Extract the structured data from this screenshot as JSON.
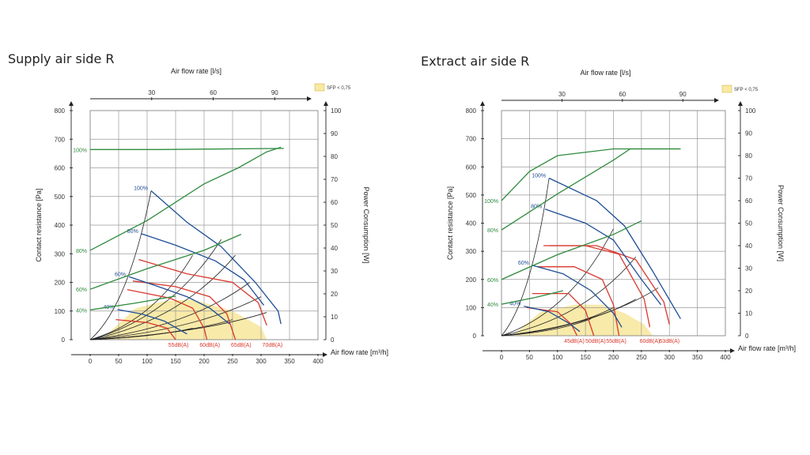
{
  "colors": {
    "green": "#2e8b3e",
    "blue": "#1f4e96",
    "red": "#d9382e",
    "black": "#222222",
    "sfp": "#f8e9a4"
  },
  "chart_data": [
    {
      "type": "line",
      "title": "Supply air side R",
      "xlabel": "Air flow rate [m³/h]",
      "x2label": "Air flow rate [l/s]",
      "ylabel": "Contact resistance [Pa]",
      "y2label": "Power Consumption [W]",
      "x_ticks": [
        "0",
        "50",
        "100",
        "150",
        "200",
        "250",
        "300",
        "350",
        "400"
      ],
      "x2_ticks": [
        "30",
        "60",
        "90"
      ],
      "y_ticks": [
        "0",
        "100",
        "200",
        "300",
        "400",
        "500",
        "600",
        "700",
        "800"
      ],
      "y2_ticks": [
        "0",
        "10",
        "20",
        "30",
        "40",
        "50",
        "60",
        "70",
        "80",
        "90",
        "100"
      ],
      "xlim": [
        0,
        400
      ],
      "ylim": [
        0,
        800
      ],
      "y2lim": [
        0,
        100
      ],
      "legend": "SFP < 0,75",
      "pressure_curves": [
        {
          "name": "100%",
          "points": [
            [
              107,
              520
            ],
            [
              170,
              410
            ],
            [
              230,
              325
            ],
            [
              290,
              200
            ],
            [
              330,
              100
            ],
            [
              335,
              55
            ]
          ]
        },
        {
          "name": "80%",
          "points": [
            [
              90,
              370
            ],
            [
              150,
              330
            ],
            [
              220,
              275
            ],
            [
              270,
              210
            ],
            [
              305,
              120
            ]
          ]
        },
        {
          "name": "60%",
          "points": [
            [
              68,
              220
            ],
            [
              120,
              185
            ],
            [
              170,
              150
            ],
            [
              210,
              110
            ],
            [
              245,
              55
            ]
          ]
        },
        {
          "name": "40%",
          "points": [
            [
              48,
              105
            ],
            [
              90,
              90
            ],
            [
              130,
              65
            ],
            [
              170,
              20
            ]
          ]
        }
      ],
      "power_curves": [
        {
          "name": "100%",
          "points": [
            [
              0,
              83
            ],
            [
              120,
              83
            ],
            [
              340,
              83.5
            ]
          ]
        },
        {
          "name": "80%",
          "points": [
            [
              0,
              39
            ],
            [
              100,
              52
            ],
            [
              200,
              68
            ],
            [
              260,
              75
            ],
            [
              310,
              82
            ],
            [
              335,
              84
            ]
          ]
        },
        {
          "name": "60%",
          "points": [
            [
              0,
              22
            ],
            [
              100,
              31
            ],
            [
              200,
              39
            ],
            [
              265,
              46
            ]
          ]
        },
        {
          "name": "40%",
          "points": [
            [
              0,
              13
            ],
            [
              80,
              16
            ],
            [
              150,
              19
            ]
          ]
        }
      ],
      "noise_curves": [
        {
          "name": "55dB(A)",
          "points": [
            [
              45,
              70
            ],
            [
              100,
              60
            ],
            [
              135,
              40
            ],
            [
              150,
              0
            ]
          ]
        },
        {
          "name": "60dB(A)",
          "points": [
            [
              65,
              175
            ],
            [
              140,
              145
            ],
            [
              180,
              110
            ],
            [
              200,
              40
            ],
            [
              205,
              0
            ]
          ]
        },
        {
          "name": "65dB(A)",
          "points": [
            [
              75,
              205
            ],
            [
              150,
              185
            ],
            [
              210,
              150
            ],
            [
              240,
              90
            ],
            [
              255,
              0
            ]
          ]
        },
        {
          "name": "70dB(A)",
          "points": [
            [
              85,
              280
            ],
            [
              170,
              230
            ],
            [
              250,
              200
            ],
            [
              295,
              130
            ],
            [
              310,
              50
            ]
          ]
        }
      ],
      "system_curves_end": [
        [
          107,
          520
        ],
        [
          180,
          295
        ],
        [
          230,
          350
        ],
        [
          255,
          295
        ],
        [
          280,
          200
        ],
        [
          300,
          150
        ],
        [
          310,
          95
        ],
        [
          250,
          70
        ],
        [
          180,
          40
        ]
      ],
      "sfp_region": [
        [
          20,
          0
        ],
        [
          80,
          110
        ],
        [
          130,
          135
        ],
        [
          180,
          140
        ],
        [
          250,
          100
        ],
        [
          300,
          45
        ],
        [
          310,
          0
        ]
      ],
      "noise_labels": [
        {
          "text": "55dB(A)",
          "x": 155
        },
        {
          "text": "60dB(A)",
          "x": 210
        },
        {
          "text": "65dB(A)",
          "x": 265
        },
        {
          "text": "70dB(A)",
          "x": 320
        }
      ]
    },
    {
      "type": "line",
      "title": "Extract air side R",
      "xlabel": "Air flow rate [m³/h]",
      "x2label": "Air flow rate [l/s]",
      "ylabel": "Contact resistance [Pa]",
      "y2label": "Power Consumption [W]",
      "x_ticks": [
        "0",
        "50",
        "100",
        "150",
        "200",
        "250",
        "300",
        "350",
        "400"
      ],
      "x2_ticks": [
        "30",
        "60",
        "90"
      ],
      "y_ticks": [
        "0",
        "100",
        "200",
        "300",
        "400",
        "500",
        "600",
        "700",
        "800"
      ],
      "y2_ticks": [
        "0",
        "10",
        "20",
        "30",
        "40",
        "50",
        "60",
        "70",
        "80",
        "90",
        "100"
      ],
      "xlim": [
        0,
        400
      ],
      "ylim": [
        0,
        800
      ],
      "y2lim": [
        0,
        100
      ],
      "legend": "SFP < 0,75",
      "pressure_curves": [
        {
          "name": "100%",
          "points": [
            [
              85,
              560
            ],
            [
              170,
              480
            ],
            [
              220,
              390
            ],
            [
              270,
              230
            ],
            [
              320,
              60
            ]
          ]
        },
        {
          "name": "80%",
          "points": [
            [
              78,
              450
            ],
            [
              150,
              400
            ],
            [
              200,
              340
            ],
            [
              250,
              200
            ],
            [
              285,
              110
            ]
          ]
        },
        {
          "name": "60%",
          "points": [
            [
              55,
              250
            ],
            [
              110,
              220
            ],
            [
              160,
              160
            ],
            [
              200,
              80
            ],
            [
              215,
              30
            ]
          ]
        },
        {
          "name": "40%",
          "points": [
            [
              40,
              105
            ],
            [
              85,
              85
            ],
            [
              120,
              45
            ],
            [
              140,
              15
            ]
          ]
        }
      ],
      "power_curves": [
        {
          "name": "100%",
          "points": [
            [
              0,
              60
            ],
            [
              50,
              73
            ],
            [
              100,
              80
            ],
            [
              200,
              83
            ],
            [
              320,
              83
            ]
          ]
        },
        {
          "name": "80%",
          "points": [
            [
              0,
              47
            ],
            [
              100,
              63
            ],
            [
              200,
              78
            ],
            [
              230,
              83
            ],
            [
              320,
              83
            ]
          ]
        },
        {
          "name": "60%",
          "points": [
            [
              0,
              25
            ],
            [
              100,
              36
            ],
            [
              200,
              45
            ],
            [
              250,
              51
            ]
          ]
        },
        {
          "name": "40%",
          "points": [
            [
              0,
              14
            ],
            [
              60,
              17
            ],
            [
              110,
              20
            ]
          ]
        }
      ],
      "noise_curves": [
        {
          "name": "45dB(A)",
          "points": [
            [
              45,
              100
            ],
            [
              100,
              85
            ],
            [
              125,
              40
            ],
            [
              135,
              0
            ]
          ]
        },
        {
          "name": "50dB(A)",
          "points": [
            [
              55,
              150
            ],
            [
              120,
              150
            ],
            [
              150,
              90
            ],
            [
              165,
              0
            ]
          ]
        },
        {
          "name": "55dB(A)",
          "points": [
            [
              65,
              245
            ],
            [
              130,
              245
            ],
            [
              180,
              200
            ],
            [
              200,
              110
            ],
            [
              210,
              0
            ]
          ]
        },
        {
          "name": "60dB(A)",
          "points": [
            [
              75,
              320
            ],
            [
              150,
              320
            ],
            [
              210,
              290
            ],
            [
              255,
              130
            ],
            [
              265,
              30
            ]
          ]
        },
        {
          "name": "63dB(A)",
          "points": [
            [
              85,
              320
            ],
            [
              170,
              320
            ],
            [
              240,
              270
            ],
            [
              290,
              120
            ],
            [
              300,
              40
            ]
          ]
        }
      ],
      "system_curves_end": [
        [
          85,
          560
        ],
        [
          200,
          380
        ],
        [
          240,
          280
        ],
        [
          280,
          170
        ],
        [
          240,
          130
        ],
        [
          200,
          100
        ],
        [
          160,
          60
        ]
      ],
      "sfp_region": [
        [
          20,
          0
        ],
        [
          70,
          85
        ],
        [
          130,
          110
        ],
        [
          180,
          110
        ],
        [
          220,
          80
        ],
        [
          255,
          40
        ],
        [
          270,
          0
        ]
      ],
      "noise_labels": [
        {
          "text": "45dB(A)",
          "x": 130
        },
        {
          "text": "50dB(A)",
          "x": 168
        },
        {
          "text": "55dB(A)",
          "x": 205
        },
        {
          "text": "60dB(A)",
          "x": 265
        },
        {
          "text": "63dB(A)",
          "x": 300
        }
      ]
    }
  ]
}
